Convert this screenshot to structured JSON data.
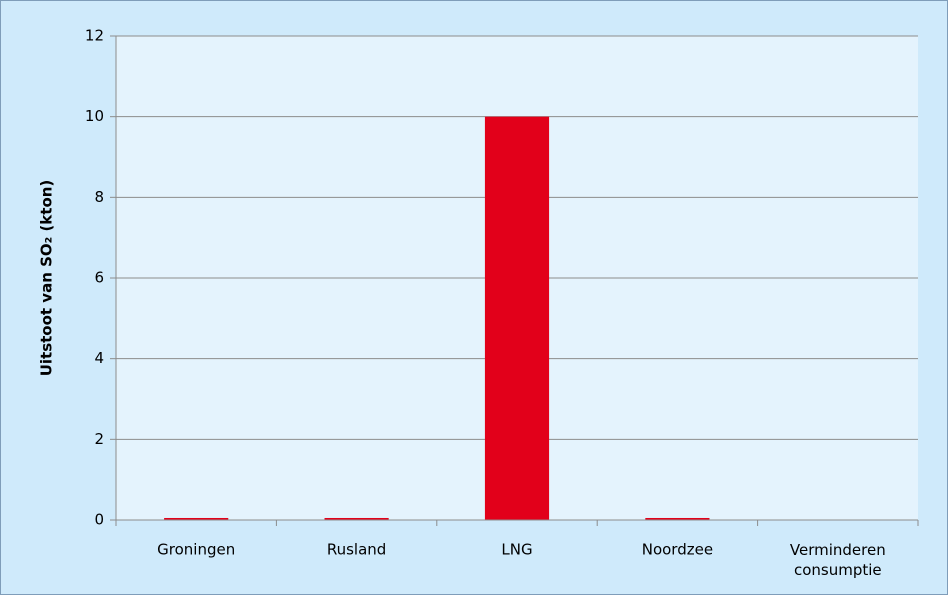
{
  "chart_data": {
    "type": "bar",
    "y_label": "Uitstoot van SO₂ (kton)",
    "categories": [
      "Groningen",
      "Rusland",
      "LNG",
      "Noordzee",
      "Verminderen consumptie"
    ],
    "values": [
      0.05,
      0.05,
      10,
      0.05,
      0
    ],
    "color": "#e2001a",
    "ylim": [
      0,
      12
    ],
    "yticks": [
      0,
      2,
      4,
      6,
      8,
      10,
      12
    ],
    "grid": true
  }
}
